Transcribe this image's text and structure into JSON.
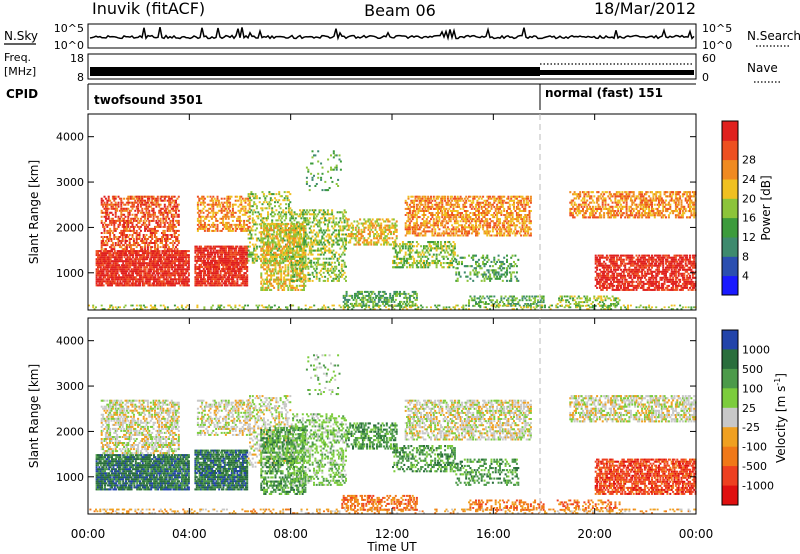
{
  "header": {
    "station": "Inuvik (fitACF)",
    "beam": "Beam 06",
    "date": "18/Mar/2012"
  },
  "left_labels": {
    "nsky": "N.Sky",
    "freq": "Freq.",
    "freq_unit": "[MHz]",
    "cpid": "CPID"
  },
  "right_labels": {
    "nsearch": "N.Search",
    "nave": "Nave"
  },
  "strip_ticks": {
    "noise_left": [
      "10^5",
      "10^0"
    ],
    "noise_right": [
      "10^5",
      "10^0"
    ],
    "freq_left": [
      "18",
      "8"
    ],
    "nave_right": [
      "60",
      "0"
    ]
  },
  "cpid_segments": [
    {
      "label": "twofsound 3501",
      "start_hr": 0,
      "end_hr": 18
    },
    {
      "label": "normal (fast) 151",
      "start_hr": 18,
      "end_hr": 24
    }
  ],
  "chart_data": [
    {
      "type": "heatmap",
      "title": "",
      "xlabel": "Time UT",
      "ylabel": "Slant Range [km]",
      "x_ticks": [
        "00:00",
        "04:00",
        "08:00",
        "12:00",
        "16:00",
        "20:00",
        "00:00"
      ],
      "x_range_hr": [
        0,
        24
      ],
      "y_ticks": [
        "1000",
        "2000",
        "3000",
        "4000"
      ],
      "y_range": [
        180,
        4500
      ],
      "colorbar": {
        "label": "Power [dB]",
        "ticks": [
          "4",
          "8",
          "12",
          "16",
          "20",
          "24",
          "28"
        ],
        "range": [
          0,
          30
        ],
        "colors": [
          "#1a1aff",
          "#2b4fb0",
          "#3e8a6e",
          "#3c9b3c",
          "#8cc43a",
          "#f0c020",
          "#f08a20",
          "#ee5020",
          "#e0201e"
        ]
      }
    },
    {
      "type": "heatmap",
      "title": "",
      "xlabel": "Time UT",
      "ylabel": "Slant Range [km]",
      "x_ticks": [
        "00:00",
        "04:00",
        "08:00",
        "12:00",
        "16:00",
        "20:00",
        "00:00"
      ],
      "x_range_hr": [
        0,
        24
      ],
      "y_ticks": [
        "1000",
        "2000",
        "3000",
        "4000"
      ],
      "y_range": [
        180,
        4500
      ],
      "colorbar": {
        "label": "Velocity [m s",
        "label_sup": "-1",
        "label_tail": "]",
        "ticks": [
          "1000",
          "500",
          "100",
          "25",
          "-25",
          "-100",
          "-500",
          "-1000"
        ],
        "colors": [
          "#2244aa",
          "#2a6e3c",
          "#4c9a4a",
          "#7ccc3c",
          "#c8c8c8",
          "#f0a020",
          "#f07818",
          "#ee4020",
          "#e01010"
        ]
      }
    }
  ]
}
